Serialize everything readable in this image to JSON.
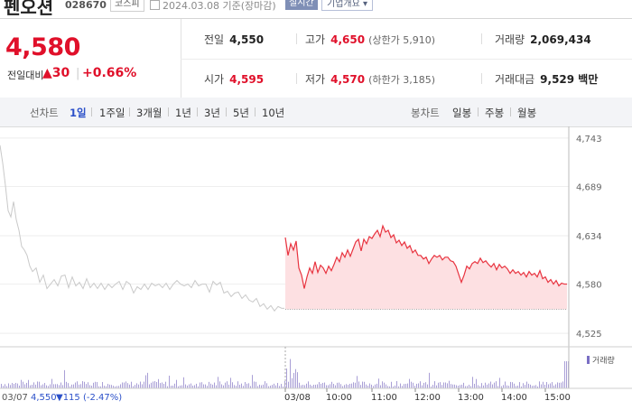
{
  "header": {
    "stock_name": "펜오션",
    "stock_code": "028670",
    "market": "코스피",
    "date_text": "2024.03.08 기준(장마감)",
    "realtime_label": "실시간",
    "company_label": "기업개요"
  },
  "price": {
    "current": "4,580",
    "diff_label": "전일대비",
    "diff_amount": "▲30",
    "diff_rate": "+0.66%"
  },
  "stats": {
    "prev_close_label": "전일",
    "prev_close": "4,550",
    "high_label": "고가",
    "high": "4,650",
    "upper_limit": "(상한가 5,910)",
    "volume_label": "거래량",
    "volume": "2,069,434",
    "open_label": "시가",
    "open": "4,595",
    "low_label": "저가",
    "low": "4,570",
    "lower_limit": "(하한가 3,185)",
    "trade_value_label": "거래대금",
    "trade_value": "9,529 백만"
  },
  "toolbar": {
    "line_label": "선차트",
    "periods": [
      "1일",
      "1주일",
      "3개월",
      "1년",
      "3년",
      "5년",
      "10년"
    ],
    "active_period": "1일",
    "candle_label": "봉차트",
    "candles": [
      "일봉",
      "주봉",
      "월봉"
    ]
  },
  "chart_data": {
    "type": "line",
    "series": [
      {
        "date": "03/07",
        "points": [
          [
            0,
            4735
          ],
          [
            3,
            4715
          ],
          [
            6,
            4690
          ],
          [
            9,
            4662
          ],
          [
            12,
            4655
          ],
          [
            15,
            4672
          ],
          [
            18,
            4652
          ],
          [
            21,
            4640
          ],
          [
            24,
            4622
          ],
          [
            27,
            4618
          ],
          [
            30,
            4612
          ],
          [
            33,
            4600
          ],
          [
            36,
            4594
          ],
          [
            40,
            4598
          ],
          [
            44,
            4582
          ],
          [
            48,
            4590
          ],
          [
            52,
            4575
          ],
          [
            56,
            4580
          ],
          [
            60,
            4585
          ],
          [
            64,
            4578
          ],
          [
            68,
            4589
          ],
          [
            72,
            4590
          ],
          [
            76,
            4576
          ],
          [
            80,
            4588
          ],
          [
            84,
            4578
          ],
          [
            88,
            4582
          ],
          [
            92,
            4575
          ],
          [
            96,
            4586
          ],
          [
            100,
            4576
          ],
          [
            104,
            4581
          ],
          [
            108,
            4575
          ],
          [
            112,
            4581
          ],
          [
            116,
            4574
          ],
          [
            120,
            4580
          ],
          [
            124,
            4576
          ],
          [
            128,
            4580
          ],
          [
            132,
            4583
          ],
          [
            136,
            4574
          ],
          [
            140,
            4583
          ],
          [
            144,
            4580
          ],
          [
            148,
            4570
          ],
          [
            152,
            4577
          ],
          [
            156,
            4574
          ],
          [
            160,
            4580
          ],
          [
            164,
            4574
          ],
          [
            168,
            4581
          ],
          [
            172,
            4578
          ],
          [
            176,
            4580
          ],
          [
            180,
            4576
          ],
          [
            184,
            4581
          ],
          [
            188,
            4574
          ],
          [
            192,
            4580
          ],
          [
            196,
            4584
          ],
          [
            200,
            4580
          ],
          [
            204,
            4578
          ],
          [
            208,
            4580
          ],
          [
            212,
            4576
          ],
          [
            216,
            4584
          ],
          [
            220,
            4578
          ],
          [
            224,
            4580
          ],
          [
            228,
            4580
          ],
          [
            232,
            4571
          ],
          [
            236,
            4583
          ],
          [
            240,
            4579
          ],
          [
            244,
            4582
          ],
          [
            248,
            4570
          ],
          [
            252,
            4572
          ],
          [
            256,
            4566
          ],
          [
            260,
            4570
          ],
          [
            264,
            4571
          ],
          [
            268,
            4564
          ],
          [
            272,
            4568
          ],
          [
            276,
            4562
          ],
          [
            280,
            4560
          ],
          [
            284,
            4564
          ],
          [
            288,
            4555
          ],
          [
            292,
            4558
          ],
          [
            296,
            4552
          ],
          [
            300,
            4556
          ],
          [
            304,
            4550
          ],
          [
            308,
            4555
          ],
          [
            312,
            4553
          ],
          [
            315,
            4553
          ]
        ]
      },
      {
        "date": "03/08",
        "points": [
          [
            316,
            4632
          ],
          [
            319,
            4612
          ],
          [
            322,
            4625
          ],
          [
            325,
            4618
          ],
          [
            328,
            4628
          ],
          [
            331,
            4598
          ],
          [
            334,
            4590
          ],
          [
            337,
            4575
          ],
          [
            340,
            4588
          ],
          [
            343,
            4598
          ],
          [
            346,
            4592
          ],
          [
            349,
            4605
          ],
          [
            352,
            4593
          ],
          [
            355,
            4601
          ],
          [
            358,
            4598
          ],
          [
            361,
            4592
          ],
          [
            364,
            4600
          ],
          [
            367,
            4595
          ],
          [
            370,
            4602
          ],
          [
            373,
            4610
          ],
          [
            376,
            4605
          ],
          [
            379,
            4615
          ],
          [
            382,
            4610
          ],
          [
            385,
            4618
          ],
          [
            388,
            4611
          ],
          [
            391,
            4619
          ],
          [
            394,
            4627
          ],
          [
            397,
            4630
          ],
          [
            400,
            4617
          ],
          [
            403,
            4630
          ],
          [
            406,
            4625
          ],
          [
            409,
            4633
          ],
          [
            412,
            4631
          ],
          [
            415,
            4636
          ],
          [
            418,
            4640
          ],
          [
            421,
            4633
          ],
          [
            424,
            4645
          ],
          [
            427,
            4638
          ],
          [
            430,
            4640
          ],
          [
            433,
            4632
          ],
          [
            436,
            4635
          ],
          [
            439,
            4626
          ],
          [
            442,
            4629
          ],
          [
            445,
            4623
          ],
          [
            448,
            4627
          ],
          [
            451,
            4620
          ],
          [
            454,
            4623
          ],
          [
            457,
            4615
          ],
          [
            460,
            4618
          ],
          [
            463,
            4612
          ],
          [
            466,
            4612
          ],
          [
            469,
            4608
          ],
          [
            472,
            4610
          ],
          [
            475,
            4603
          ],
          [
            478,
            4608
          ],
          [
            481,
            4612
          ],
          [
            484,
            4610
          ],
          [
            487,
            4612
          ],
          [
            490,
            4607
          ],
          [
            493,
            4610
          ],
          [
            496,
            4610
          ],
          [
            499,
            4606
          ],
          [
            502,
            4605
          ],
          [
            505,
            4600
          ],
          [
            508,
            4591
          ],
          [
            511,
            4582
          ],
          [
            514,
            4590
          ],
          [
            517,
            4600
          ],
          [
            520,
            4597
          ],
          [
            523,
            4603
          ],
          [
            526,
            4605
          ],
          [
            529,
            4603
          ],
          [
            532,
            4609
          ],
          [
            535,
            4604
          ],
          [
            538,
            4606
          ],
          [
            541,
            4602
          ],
          [
            544,
            4599
          ],
          [
            547,
            4603
          ],
          [
            550,
            4596
          ],
          [
            553,
            4602
          ],
          [
            556,
            4598
          ],
          [
            559,
            4600
          ],
          [
            562,
            4597
          ],
          [
            565,
            4592
          ],
          [
            568,
            4596
          ],
          [
            571,
            4592
          ],
          [
            574,
            4594
          ],
          [
            577,
            4590
          ],
          [
            580,
            4593
          ],
          [
            583,
            4588
          ],
          [
            586,
            4594
          ],
          [
            589,
            4590
          ],
          [
            592,
            4592
          ],
          [
            595,
            4588
          ],
          [
            598,
            4595
          ],
          [
            601,
            4586
          ],
          [
            604,
            4588
          ],
          [
            607,
            4582
          ],
          [
            610,
            4585
          ],
          [
            613,
            4580
          ],
          [
            616,
            4584
          ],
          [
            619,
            4578
          ],
          [
            622,
            4581
          ],
          [
            625,
            4580
          ],
          [
            628,
            4580
          ]
        ]
      }
    ],
    "x_tick_labels": [
      "03/08",
      "10:00",
      "11:00",
      "12:00",
      "13:00",
      "14:00",
      "15:00"
    ],
    "y_ticks": [
      4743,
      4689,
      4634,
      4580,
      4525
    ],
    "y_tick_labels": [
      "4,743",
      "4,689",
      "4,634",
      "4,580",
      "4,525"
    ],
    "ylim": [
      4510,
      4756
    ],
    "baseline_value": 4552,
    "footer_date": "03/07",
    "footer_close": "4,550",
    "footer_change": "▼115 (-2.47%)",
    "volume_legend": "거래량",
    "colors": {
      "up_line": "#e8333f",
      "up_fill": "#fde0e2",
      "prev_line": "#c9c9c9",
      "volume": "#a99fd6",
      "axis": "#bbbbbb"
    }
  }
}
